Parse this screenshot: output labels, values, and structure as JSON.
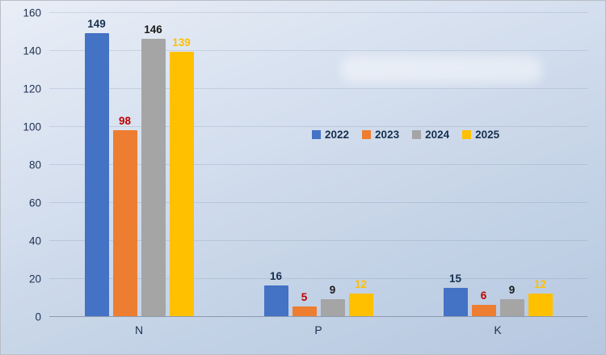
{
  "chart_data": {
    "type": "bar",
    "title": "",
    "categories": [
      "N",
      "P",
      "K"
    ],
    "series": [
      {
        "name": "2022",
        "color": "#4472C4",
        "label_color": "#17304f",
        "values": [
          149,
          16,
          15
        ]
      },
      {
        "name": "2023",
        "color": "#ED7D31",
        "label_color": "#C00000",
        "values": [
          98,
          5,
          6
        ]
      },
      {
        "name": "2024",
        "color": "#A5A5A5",
        "label_color": "#1a1a1a",
        "values": [
          146,
          9,
          9
        ]
      },
      {
        "name": "2025",
        "color": "#FFC000",
        "label_color": "#FFC000",
        "values": [
          139,
          12,
          12
        ]
      }
    ],
    "ylim": [
      0,
      160
    ],
    "ytick_step": 20,
    "grid": true,
    "legend_position": "center"
  }
}
